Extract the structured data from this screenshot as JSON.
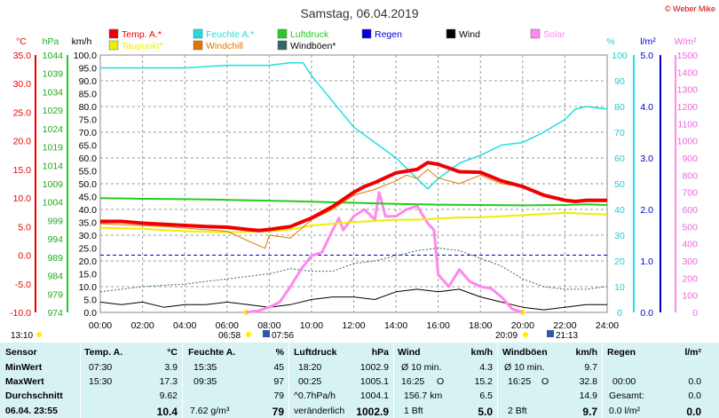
{
  "chart_data": {
    "type": "line",
    "title": "Samstag, 06.04.2019",
    "credit": "© Weber Mike",
    "legend": [
      {
        "label": "Temp. A.*",
        "color": "#ee0000"
      },
      {
        "label": "Feuchte A.*",
        "color": "#22dddd"
      },
      {
        "label": "Luftdruck",
        "color": "#22cc22"
      },
      {
        "label": "Regen",
        "color": "#0000dd"
      },
      {
        "label": "Wind",
        "color": "#000000"
      },
      {
        "label": "Solar",
        "color": "#ff88ee"
      },
      {
        "label": "Taupunkt*",
        "color": "#eeee00"
      },
      {
        "label": "Windchill",
        "color": "#dd7700"
      },
      {
        "label": "Windböen*",
        "color": "#336666"
      }
    ],
    "axis_units": {
      "temp": "°C",
      "pressure": "hPa",
      "wind": "km/h",
      "humidity": "%",
      "rain": "l/m²",
      "solar": "W/m²"
    },
    "y_ticks": {
      "temp": [
        "35.0",
        "30.0",
        "25.0",
        "20.0",
        "15.0",
        "10.0",
        "5.0",
        "0.0",
        "-5.0",
        "-10.0"
      ],
      "pressure": [
        "1044",
        "1039",
        "1034",
        "1029",
        "1024",
        "1019",
        "1014",
        "1009",
        "1004",
        "999",
        "994",
        "989",
        "984",
        "979",
        "974"
      ],
      "wind": [
        "100.0",
        "95.0",
        "90.0",
        "85.0",
        "80.0",
        "75.0",
        "70.0",
        "65.0",
        "60.0",
        "55.0",
        "50.0",
        "45.0",
        "40.0",
        "35.0",
        "30.0",
        "25.0",
        "20.0",
        "15.0",
        "10.0",
        "5.0",
        "0.0"
      ],
      "humidity": [
        "100",
        "90",
        "80",
        "70",
        "60",
        "50",
        "40",
        "30",
        "20",
        "10",
        "0"
      ],
      "rain": [
        "5.0",
        "4.0",
        "3.0",
        "2.0",
        "1.0",
        "0.0"
      ],
      "solar": [
        "1500",
        "1400",
        "1300",
        "1200",
        "1100",
        "1000",
        "900",
        "800",
        "700",
        "600",
        "500",
        "400",
        "300",
        "200",
        "100",
        "0"
      ]
    },
    "x_ticks": [
      "00:00",
      "02:00",
      "04:00",
      "06:00",
      "08:00",
      "10:00",
      "12:00",
      "14:00",
      "16:00",
      "18:00",
      "20:00",
      "22:00",
      "24:00"
    ],
    "xlim_hours": [
      0,
      24
    ],
    "sun_times": {
      "sunrise": "06:58",
      "sunset": "20:09",
      "moon_a": "07:56",
      "moon_b": "21:13",
      "mark": "13:10"
    },
    "series": {
      "temp": {
        "name": "Temp. A.*",
        "unit": "°C",
        "x": [
          0,
          1,
          2,
          3,
          4,
          5,
          6,
          7,
          7.5,
          8,
          9,
          10,
          11,
          12,
          12.5,
          13,
          14,
          15,
          15.5,
          16,
          17,
          18,
          19,
          20,
          21,
          22,
          22.5,
          23,
          24
        ],
        "y": [
          5.9,
          5.9,
          5.6,
          5.4,
          5.2,
          5.0,
          4.9,
          4.5,
          4.3,
          4.5,
          5.0,
          6.5,
          8.5,
          11.0,
          12.0,
          12.7,
          14.4,
          15.0,
          16.2,
          15.9,
          14.6,
          14.5,
          13.0,
          12.0,
          10.5,
          9.6,
          9.4,
          9.6,
          9.6
        ]
      },
      "dew": {
        "name": "Taupunkt*",
        "unit": "°C",
        "x": [
          0,
          2,
          4,
          6,
          7,
          8,
          9,
          10,
          12,
          14,
          15,
          16,
          17,
          18,
          20,
          22,
          24
        ],
        "y": [
          4.8,
          4.6,
          4.2,
          4.0,
          4.1,
          4.2,
          4.5,
          5.2,
          5.8,
          6.2,
          6.2,
          6.4,
          6.6,
          6.6,
          7.0,
          7.4,
          7.1
        ]
      },
      "windchill": {
        "name": "Windchill",
        "unit": "°C",
        "x": [
          0,
          3,
          6,
          7,
          7.8,
          8,
          9,
          10,
          11,
          12,
          13,
          14,
          14.5,
          15,
          15.5,
          16,
          17,
          18,
          19,
          20,
          21,
          22,
          24
        ],
        "y": [
          5.5,
          5.0,
          4.2,
          2.5,
          1.2,
          3.5,
          3.0,
          6.2,
          8.0,
          10.5,
          11.5,
          13.0,
          14.0,
          13.4,
          15.0,
          13.5,
          12.5,
          14.0,
          12.5,
          12.0,
          10.5,
          9.5,
          9.6
        ]
      },
      "humidity": {
        "name": "Feuchte A.*",
        "unit": "%",
        "x": [
          0,
          2,
          4,
          6,
          7,
          8,
          9,
          9.6,
          10,
          11,
          12,
          13,
          14,
          15,
          15.5,
          16,
          17,
          18,
          19,
          20,
          21,
          22,
          22.5,
          23,
          24
        ],
        "y": [
          95,
          95,
          95,
          96,
          96,
          96,
          97,
          97,
          92,
          82,
          72,
          66,
          60,
          52,
          48,
          52,
          58,
          61,
          65,
          66,
          70,
          75,
          79,
          80,
          79
        ]
      },
      "pressure": {
        "name": "Luftdruck",
        "unit": "hPa",
        "x": [
          0,
          2,
          4,
          6,
          8,
          10,
          12,
          14,
          16,
          18,
          20,
          22,
          23,
          24
        ],
        "y": [
          1005.1,
          1004.9,
          1004.8,
          1004.6,
          1004.4,
          1004.1,
          1003.8,
          1003.5,
          1003.3,
          1003.2,
          1003.1,
          1003.2,
          1003.4,
          1003.2
        ]
      },
      "wind": {
        "name": "Wind",
        "unit": "km/h",
        "x": [
          0,
          1,
          2,
          3,
          4,
          5,
          6,
          7,
          8,
          9,
          10,
          11,
          12,
          13,
          14,
          15,
          16,
          17,
          18,
          19,
          20,
          21,
          22,
          23,
          24
        ],
        "y": [
          4,
          3,
          4,
          2,
          3,
          3,
          4,
          3,
          2,
          3,
          5,
          6,
          6,
          5,
          8,
          9,
          8,
          9,
          6,
          4,
          2,
          1,
          2,
          3,
          3
        ]
      },
      "gusts": {
        "name": "Windböen*",
        "unit": "km/h",
        "x": [
          0,
          2,
          4,
          6,
          7,
          8,
          9,
          10,
          11,
          12,
          13,
          14,
          15,
          16,
          17,
          18,
          19,
          20,
          21,
          22,
          23,
          24
        ],
        "y": [
          8,
          10,
          11,
          13,
          14,
          15,
          17,
          16,
          16,
          19,
          20,
          22,
          24,
          25,
          24,
          21,
          18,
          13,
          10,
          9,
          9,
          10
        ]
      },
      "solar": {
        "name": "Solar",
        "unit": "W/m²",
        "x": [
          6.9,
          7.5,
          8,
          8.5,
          9,
          9.5,
          10,
          10.5,
          11,
          11.3,
          11.5,
          12,
          12.5,
          13,
          13.2,
          13.5,
          14,
          14.5,
          15,
          15.5,
          15.8,
          16,
          16.5,
          17,
          17.5,
          18,
          18.5,
          19,
          19.5,
          20
        ],
        "y": [
          0,
          10,
          30,
          60,
          150,
          250,
          330,
          350,
          480,
          550,
          480,
          560,
          600,
          540,
          700,
          560,
          560,
          600,
          620,
          520,
          480,
          220,
          150,
          250,
          180,
          150,
          140,
          90,
          20,
          0
        ]
      }
    }
  },
  "table": {
    "headers": {
      "sensor": "Sensor",
      "temp": "Temp. A.",
      "temp_unit": "°C",
      "hum": "Feuchte A.",
      "hum_unit": "%",
      "press": "Luftdruck",
      "press_unit": "hPa",
      "wind": "Wind",
      "wind_unit": "km/h",
      "gust": "Windböen",
      "gust_unit": "km/h",
      "rain": "Regen",
      "rain_unit": "l/m²"
    },
    "rows": {
      "min": {
        "label": "MinWert",
        "temp_time": "07:30",
        "temp_val": "3.9",
        "hum_time": "15:35",
        "hum_val": "45",
        "press_time": "18:20",
        "press_val": "1002.9",
        "wind_label": "Ø 10 min.",
        "wind_val": "4.3",
        "gust_label": "Ø 10 min.",
        "gust_val": "9.7",
        "rain_label": "",
        "rain_val": ""
      },
      "max": {
        "label": "MaxWert",
        "temp_time": "15:30",
        "temp_val": "17.3",
        "hum_time": "09:35",
        "hum_val": "97",
        "press_time": "00:25",
        "press_val": "1005.1",
        "wind_time": "16:25",
        "wind_dir": "O",
        "wind_val": "15.2",
        "gust_time": "16:25",
        "gust_dir": "O",
        "gust_val": "32.8",
        "rain_time": "00:00",
        "rain_val": "0.0"
      },
      "avg": {
        "label": "Durchschnitt",
        "temp_val": "9.62",
        "hum_val": "79",
        "press_label": "^0.7hPa/h",
        "press_val": "1004.1",
        "wind_label": "156.7 km",
        "wind_val": "6.5",
        "gust_val": "14.9",
        "rain_label": "Gesamt:",
        "rain_val": "0.0"
      },
      "last": {
        "label": "06.04. 23:55",
        "temp_val": "10.4",
        "hum_label": "7.62 g/m³",
        "hum_val": "79",
        "press_label": "veränderlich",
        "press_val": "1002.9",
        "wind_label": "1 Bft",
        "wind_val": "5.0",
        "gust_label": "2 Bft",
        "gust_val": "9.7",
        "rain_label": "0.0 l/m²",
        "rain_val": "0.0"
      }
    }
  }
}
